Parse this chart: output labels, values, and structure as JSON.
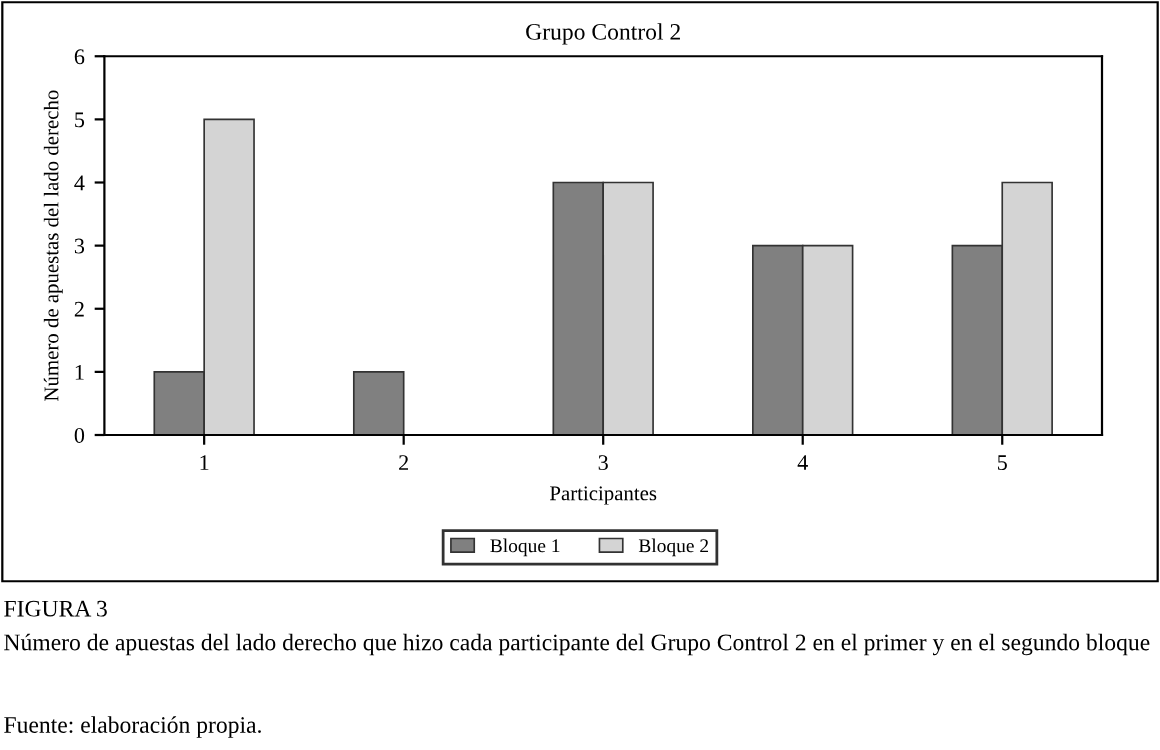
{
  "chart_data": {
    "type": "bar",
    "title": "Grupo Control 2",
    "xlabel": "Participantes",
    "ylabel": "Número de apuestas del lado derecho",
    "categories": [
      "1",
      "2",
      "3",
      "4",
      "5"
    ],
    "series": [
      {
        "name": "Bloque 1",
        "color": "#808080",
        "values": [
          1,
          1,
          4,
          3,
          3
        ]
      },
      {
        "name": "Bloque 2",
        "color": "#d4d4d4",
        "values": [
          5,
          null,
          4,
          3,
          4
        ]
      }
    ],
    "ylim": [
      0,
      6
    ],
    "yticks": [
      0,
      1,
      2,
      3,
      4,
      5,
      6
    ],
    "grid": false,
    "legend": "bottom",
    "annotations": [
      "FIGURA 3",
      "Número de apuestas del lado derecho que hizo cada participante del Grupo Control 2 en el primer y en el segundo bloque",
      "Fuente: elaboración propia."
    ]
  }
}
